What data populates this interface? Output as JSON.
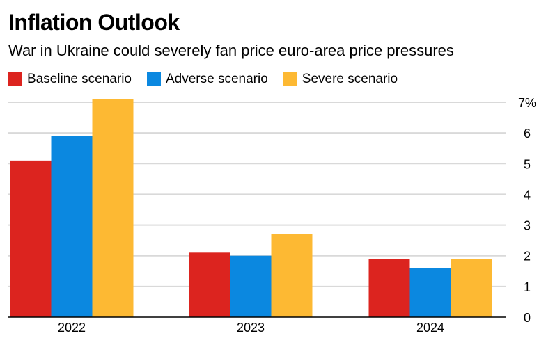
{
  "chart_data": {
    "type": "bar",
    "title": "Inflation Outlook",
    "subtitle": "War in Ukraine could severely fan price euro-area price pressures",
    "categories": [
      "2022",
      "2023",
      "2024"
    ],
    "series": [
      {
        "name": "Baseline scenario",
        "color": "#dc241f",
        "values": [
          5.1,
          2.1,
          1.9
        ]
      },
      {
        "name": "Adverse scenario",
        "color": "#0b88e0",
        "values": [
          5.9,
          2.0,
          1.6
        ]
      },
      {
        "name": "Severe scenario",
        "color": "#fdb933",
        "values": [
          7.1,
          2.7,
          1.9
        ]
      }
    ],
    "ylim": [
      0,
      7
    ],
    "y_ticks": [
      {
        "value": 0,
        "label": "0"
      },
      {
        "value": 1,
        "label": "1"
      },
      {
        "value": 2,
        "label": "2"
      },
      {
        "value": 3,
        "label": "3"
      },
      {
        "value": 4,
        "label": "4"
      },
      {
        "value": 5,
        "label": "5"
      },
      {
        "value": 6,
        "label": "6"
      },
      {
        "value": 7,
        "label": "7%"
      }
    ],
    "y_axis_side": "right",
    "grid": true,
    "legend_position": "top-left",
    "xlabel": "",
    "ylabel": ""
  }
}
